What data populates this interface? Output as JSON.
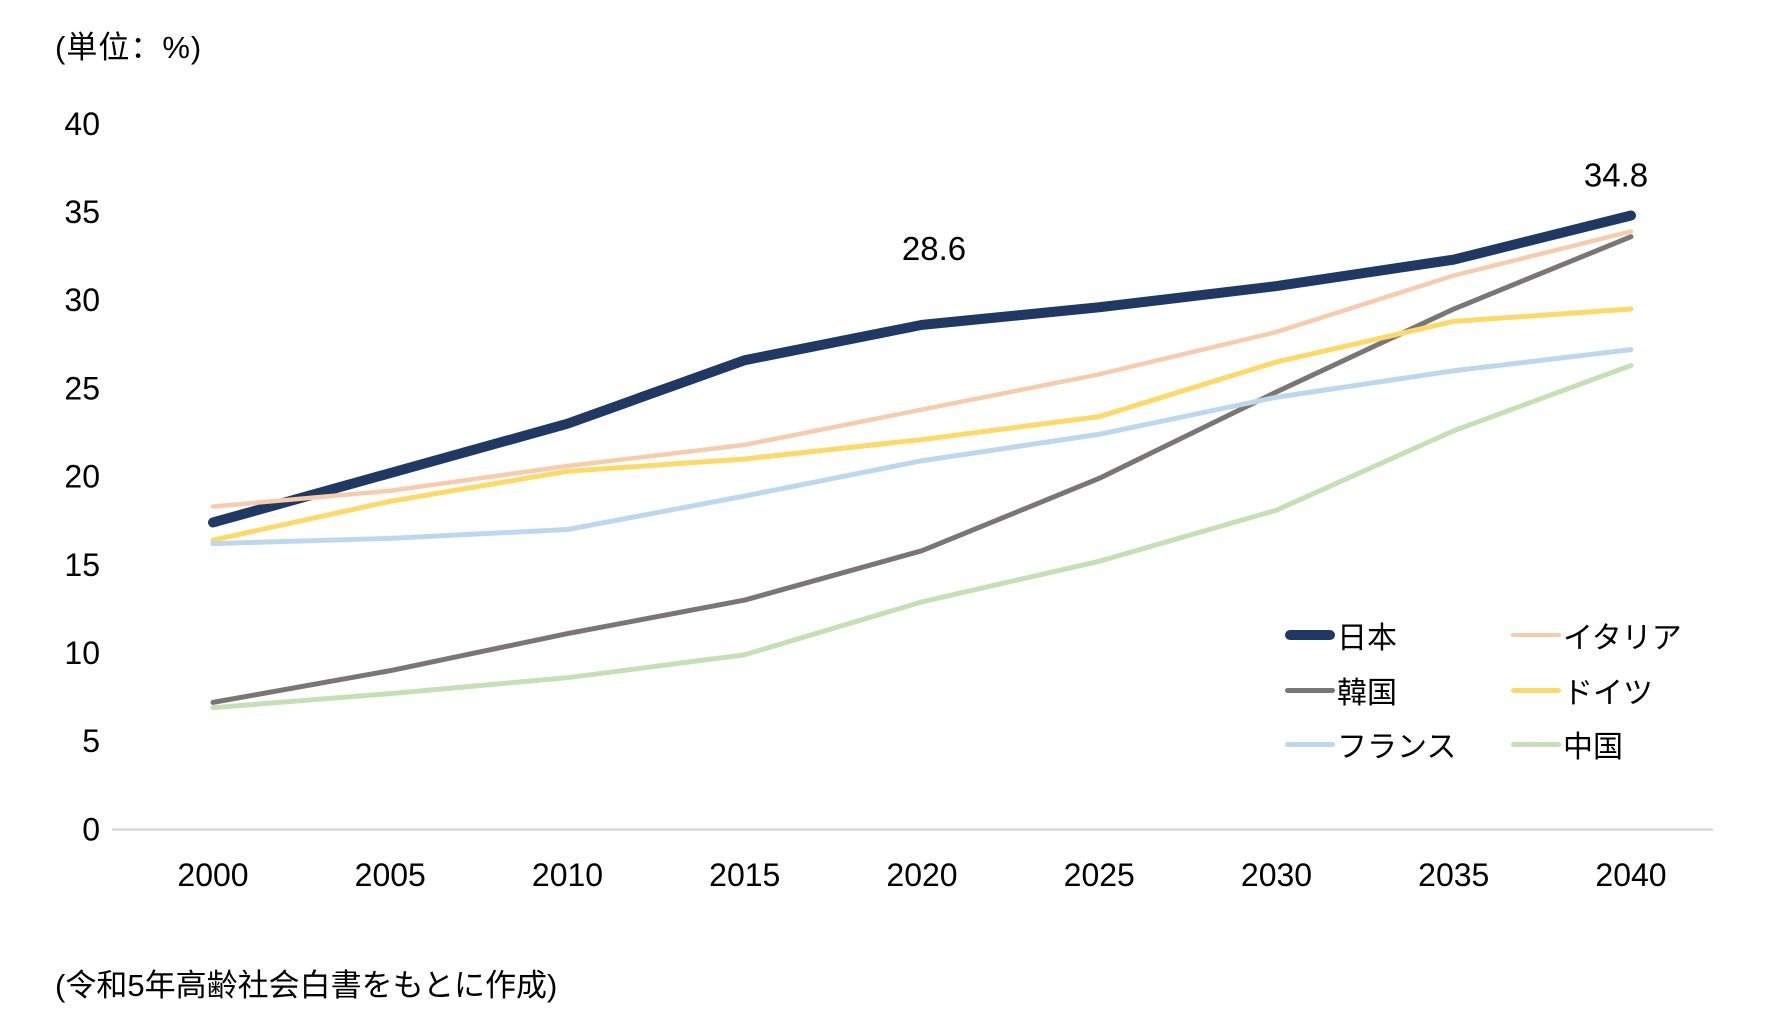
{
  "unit_label": "(単位：%)",
  "source_note": "(令和5年高齢社会白書をもとに作成)",
  "chart_data": {
    "type": "line",
    "x": [
      "2000",
      "2005",
      "2010",
      "2015",
      "2020",
      "2025",
      "2030",
      "2035",
      "2040"
    ],
    "y_ticks": [
      0,
      5,
      10,
      15,
      20,
      25,
      30,
      35,
      40
    ],
    "ylim": [
      0,
      40
    ],
    "grid": false,
    "legend_position": "inside-bottom-right",
    "axis_color": "#D9D9D9",
    "text_color": "#000000",
    "series": [
      {
        "name": "日本",
        "color": "#203864",
        "line_width": 10,
        "values": [
          17.4,
          20.2,
          23.0,
          26.6,
          28.6,
          29.6,
          30.8,
          32.3,
          34.8
        ]
      },
      {
        "name": "イタリア",
        "color": "#F8CBAD",
        "line_width": 4.5,
        "values": [
          18.3,
          19.2,
          20.6,
          21.8,
          23.8,
          25.8,
          28.2,
          31.4,
          33.9
        ]
      },
      {
        "name": "韓国",
        "color": "#7B7676",
        "line_width": 5,
        "values": [
          7.2,
          9.0,
          11.1,
          13.0,
          15.8,
          19.9,
          24.8,
          29.5,
          33.6
        ]
      },
      {
        "name": "ドイツ",
        "color": "#FFD966",
        "line_width": 5,
        "values": [
          16.4,
          18.6,
          20.3,
          21.0,
          22.1,
          23.4,
          26.5,
          28.8,
          29.5
        ]
      },
      {
        "name": "フランス",
        "color": "#BDD7EE",
        "line_width": 5,
        "values": [
          16.2,
          16.5,
          17.0,
          18.9,
          20.9,
          22.4,
          24.5,
          26.0,
          27.2
        ]
      },
      {
        "name": "中国",
        "color": "#C5E0B4",
        "line_width": 5,
        "values": [
          6.9,
          7.7,
          8.6,
          9.9,
          12.9,
          15.2,
          18.1,
          22.6,
          26.3
        ]
      }
    ],
    "annotations": [
      {
        "series": "日本",
        "x": "2020",
        "text": "28.6"
      },
      {
        "series": "日本",
        "x": "2040",
        "text": "34.8"
      }
    ],
    "legend_rows": [
      [
        "日本",
        "イタリア"
      ],
      [
        "韓国",
        "ドイツ"
      ],
      [
        "フランス",
        "中国"
      ]
    ]
  }
}
